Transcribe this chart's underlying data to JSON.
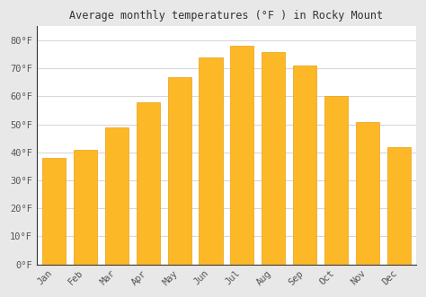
{
  "months": [
    "Jan",
    "Feb",
    "Mar",
    "Apr",
    "May",
    "Jun",
    "Jul",
    "Aug",
    "Sep",
    "Oct",
    "Nov",
    "Dec"
  ],
  "temperatures": [
    38,
    41,
    49,
    58,
    67,
    74,
    78,
    76,
    71,
    60,
    51,
    42
  ],
  "bar_color": "#FDB827",
  "bar_edge_color": "#E8A010",
  "title": "Average monthly temperatures (°F ) in Rocky Mount",
  "ylim": [
    0,
    85
  ],
  "yticks": [
    0,
    10,
    20,
    30,
    40,
    50,
    60,
    70,
    80
  ],
  "ytick_labels": [
    "0°F",
    "10°F",
    "20°F",
    "30°F",
    "40°F",
    "50°F",
    "60°F",
    "70°F",
    "80°F"
  ],
  "plot_bg_color": "#ffffff",
  "fig_bg_color": "#e8e8e8",
  "grid_color": "#d8d8d8",
  "title_fontsize": 8.5,
  "tick_fontsize": 7.5,
  "spine_color": "#333333"
}
